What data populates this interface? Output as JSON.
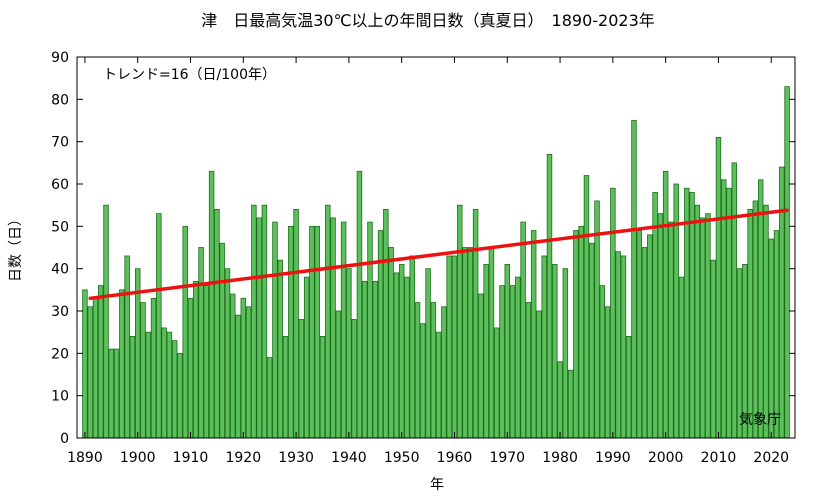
{
  "chart_data": {
    "type": "bar",
    "title": "津　日最高気温30℃以上の年間日数（真夏日）　1890-2023年",
    "xlabel": "年",
    "ylabel": "日数（日）",
    "annotation": "トレンド=16（日/100年）",
    "credit": "気象庁",
    "xlim": [
      1888.5,
      2024.5
    ],
    "ylim": [
      0,
      90
    ],
    "yticks": [
      0,
      10,
      20,
      30,
      40,
      50,
      60,
      70,
      80,
      90
    ],
    "xticks": [
      1890,
      1900,
      1910,
      1920,
      1930,
      1940,
      1950,
      1960,
      1970,
      1980,
      1990,
      2000,
      2010,
      2020
    ],
    "grid": false,
    "bar_color": "#5cbf5c",
    "bar_edge_color": "#1c6e1c",
    "trend_color": "#ee1111",
    "trend": {
      "x": [
        1891,
        2023
      ],
      "y": [
        33.0,
        53.8
      ]
    },
    "x": [
      1890,
      1891,
      1892,
      1893,
      1894,
      1895,
      1896,
      1897,
      1898,
      1899,
      1900,
      1901,
      1902,
      1903,
      1904,
      1905,
      1906,
      1907,
      1908,
      1909,
      1910,
      1911,
      1912,
      1913,
      1914,
      1915,
      1916,
      1917,
      1918,
      1919,
      1920,
      1921,
      1922,
      1923,
      1924,
      1925,
      1926,
      1927,
      1928,
      1929,
      1930,
      1931,
      1932,
      1933,
      1934,
      1935,
      1936,
      1937,
      1938,
      1939,
      1940,
      1941,
      1942,
      1943,
      1944,
      1945,
      1946,
      1947,
      1948,
      1949,
      1950,
      1951,
      1952,
      1953,
      1954,
      1955,
      1956,
      1957,
      1958,
      1959,
      1960,
      1961,
      1962,
      1963,
      1964,
      1965,
      1966,
      1967,
      1968,
      1969,
      1970,
      1971,
      1972,
      1973,
      1974,
      1975,
      1976,
      1977,
      1978,
      1979,
      1980,
      1981,
      1982,
      1983,
      1984,
      1985,
      1986,
      1987,
      1988,
      1989,
      1990,
      1991,
      1992,
      1993,
      1994,
      1995,
      1996,
      1997,
      1998,
      1999,
      2000,
      2001,
      2002,
      2003,
      2004,
      2005,
      2006,
      2007,
      2008,
      2009,
      2010,
      2011,
      2012,
      2013,
      2014,
      2015,
      2016,
      2017,
      2018,
      2019,
      2020,
      2021,
      2022,
      2023
    ],
    "values": [
      35,
      31,
      33,
      36,
      55,
      21,
      21,
      35,
      43,
      24,
      40,
      32,
      25,
      33,
      53,
      26,
      25,
      23,
      20,
      50,
      33,
      37,
      45,
      36,
      63,
      54,
      46,
      40,
      34,
      29,
      33,
      31,
      55,
      52,
      55,
      19,
      51,
      42,
      24,
      50,
      54,
      28,
      38,
      50,
      50,
      24,
      55,
      52,
      30,
      51,
      40,
      28,
      63,
      37,
      51,
      37,
      49,
      54,
      45,
      39,
      41,
      38,
      43,
      32,
      27,
      40,
      32,
      25,
      31,
      43,
      43,
      55,
      45,
      45,
      54,
      34,
      41,
      45,
      26,
      36,
      41,
      36,
      38,
      51,
      32,
      49,
      30,
      43,
      67,
      41,
      18,
      40,
      16,
      49,
      50,
      62,
      46,
      56,
      36,
      31,
      59,
      44,
      43,
      24,
      75,
      49,
      45,
      48,
      58,
      53,
      63,
      51,
      60,
      38,
      59,
      58,
      55,
      52,
      53,
      42,
      71,
      61,
      59,
      65,
      40,
      41,
      54,
      56,
      61,
      55,
      47,
      49,
      64,
      83
    ]
  }
}
